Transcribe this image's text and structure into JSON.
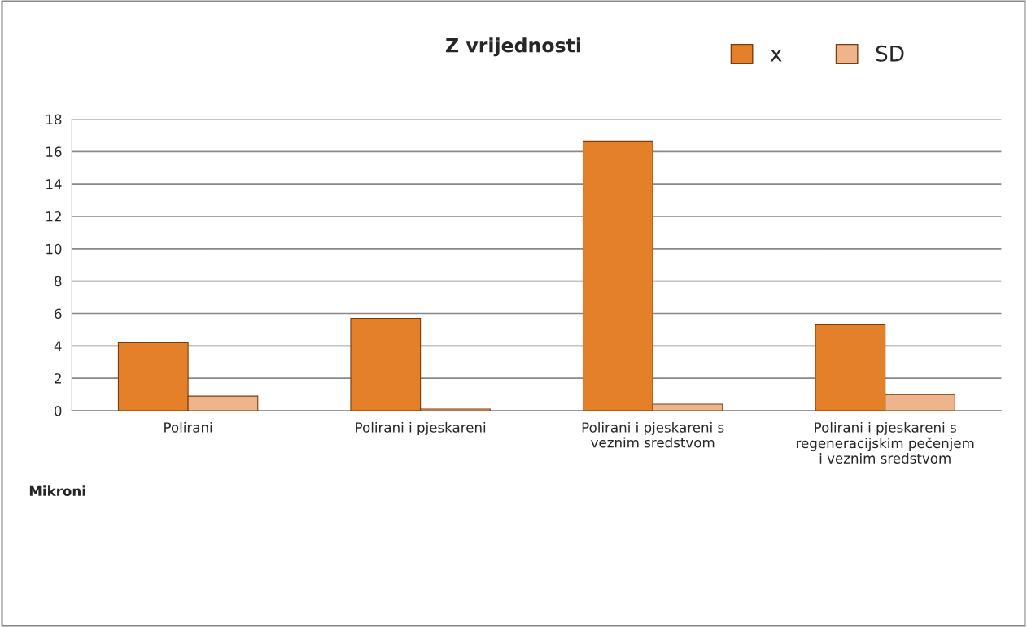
{
  "chart_data": {
    "type": "bar",
    "title": "Z vrijednosti",
    "categories": [
      "Polirani",
      "Polirani i pjeskareni",
      "Polirani i pjeskareni s\nveznim sredstvom",
      "Polirani i pjeskareni s\nregeneracijskim pečenjem\ni veznim sredstvom"
    ],
    "series": [
      {
        "name": "x",
        "color": "#e4802a",
        "values": [
          4.2,
          5.7,
          16.65,
          5.3
        ]
      },
      {
        "name": "SD",
        "color": "#eeb58c",
        "values": [
          0.9,
          0.1,
          0.4,
          1.0
        ]
      }
    ],
    "ylim": [
      0,
      18
    ],
    "yticks": [
      0,
      2,
      4,
      6,
      8,
      10,
      12,
      14,
      16,
      18
    ],
    "grid": "y",
    "legend": "top right",
    "annotations": [
      "Mikroni"
    ]
  }
}
